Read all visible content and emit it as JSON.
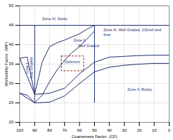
{
  "chart_data": {
    "type": "line",
    "xlabel": "Coarseness Factor  (CF)",
    "ylabel": "Workability Factor  (WF)",
    "xlim": [
      100,
      0
    ],
    "ylim": [
      20,
      50
    ],
    "xticks": [
      100,
      90,
      80,
      70,
      60,
      50,
      40,
      30,
      20,
      10,
      0
    ],
    "yticks": [
      20,
      25,
      30,
      35,
      40,
      45,
      50
    ],
    "grid": true,
    "color": "#1c2d6e",
    "series": [
      {
        "x": [
          100,
          95,
          90,
          85,
          80,
          75,
          70,
          65,
          60,
          55,
          50
        ],
        "values": [
          36.5,
          36.8,
          27.2,
          35.5,
          39.5,
          40.5,
          41.2,
          42.0,
          42.8,
          44.0,
          45.0
        ]
      },
      {
        "x": [
          100,
          95,
          90,
          85,
          80,
          75,
          70,
          65,
          60,
          55,
          50
        ],
        "values": [
          27.5,
          27.0,
          25.0,
          27.0,
          30.5,
          33.5,
          36.0,
          38.0,
          39.5,
          41.5,
          43.5
        ]
      },
      {
        "x": [
          100,
          90,
          80,
          70,
          60,
          50,
          40,
          30,
          20,
          10,
          0
        ],
        "values": [
          36.5,
          27.2,
          27.5,
          28.8,
          32.5,
          35.5,
          36.8,
          37.0,
          37.2,
          37.3,
          37.3
        ]
      },
      {
        "x": [
          100,
          90,
          80,
          70,
          60,
          50,
          40,
          30,
          20,
          10,
          0
        ],
        "values": [
          27.5,
          25.0,
          25.2,
          26.8,
          30.0,
          33.0,
          34.2,
          34.7,
          35.0,
          35.2,
          35.2
        ]
      }
    ],
    "hlines": [
      45
    ],
    "vlines": [
      {
        "x": 90,
        "y": [
          25,
          45
        ]
      },
      {
        "x": 50,
        "y": [
          25,
          45
        ]
      }
    ],
    "opt_box": {
      "x1": 72,
      "x2": 57,
      "y1": 33.2,
      "y2": 37.0,
      "color": "#8b0000",
      "line_style": "dashed"
    },
    "annotations": [
      {
        "text": "Zone IV, Sticky",
        "x": 85,
        "y": 46.3
      },
      {
        "text": "Zone II,",
        "x": 64,
        "y": 40.8
      },
      {
        "text": "Well Graded",
        "x": 61,
        "y": 39.3
      },
      {
        "text": "Optimum",
        "x": 65,
        "y": 35.2
      },
      {
        "text": "Zone III, Well Graded, 1/2inch and",
        "x": 44,
        "y": 43.5
      },
      {
        "text": "finer",
        "x": 44,
        "y": 42.3
      },
      {
        "text": "Zone V, Rocky",
        "x": 28,
        "y": 28.2
      },
      {
        "text": "Zone I,",
        "x": 94,
        "y": 34.0,
        "orientation": "vertical"
      },
      {
        "text": "Gap Graded",
        "x": 91.5,
        "y": 34.0,
        "orientation": "vertical"
      }
    ]
  }
}
